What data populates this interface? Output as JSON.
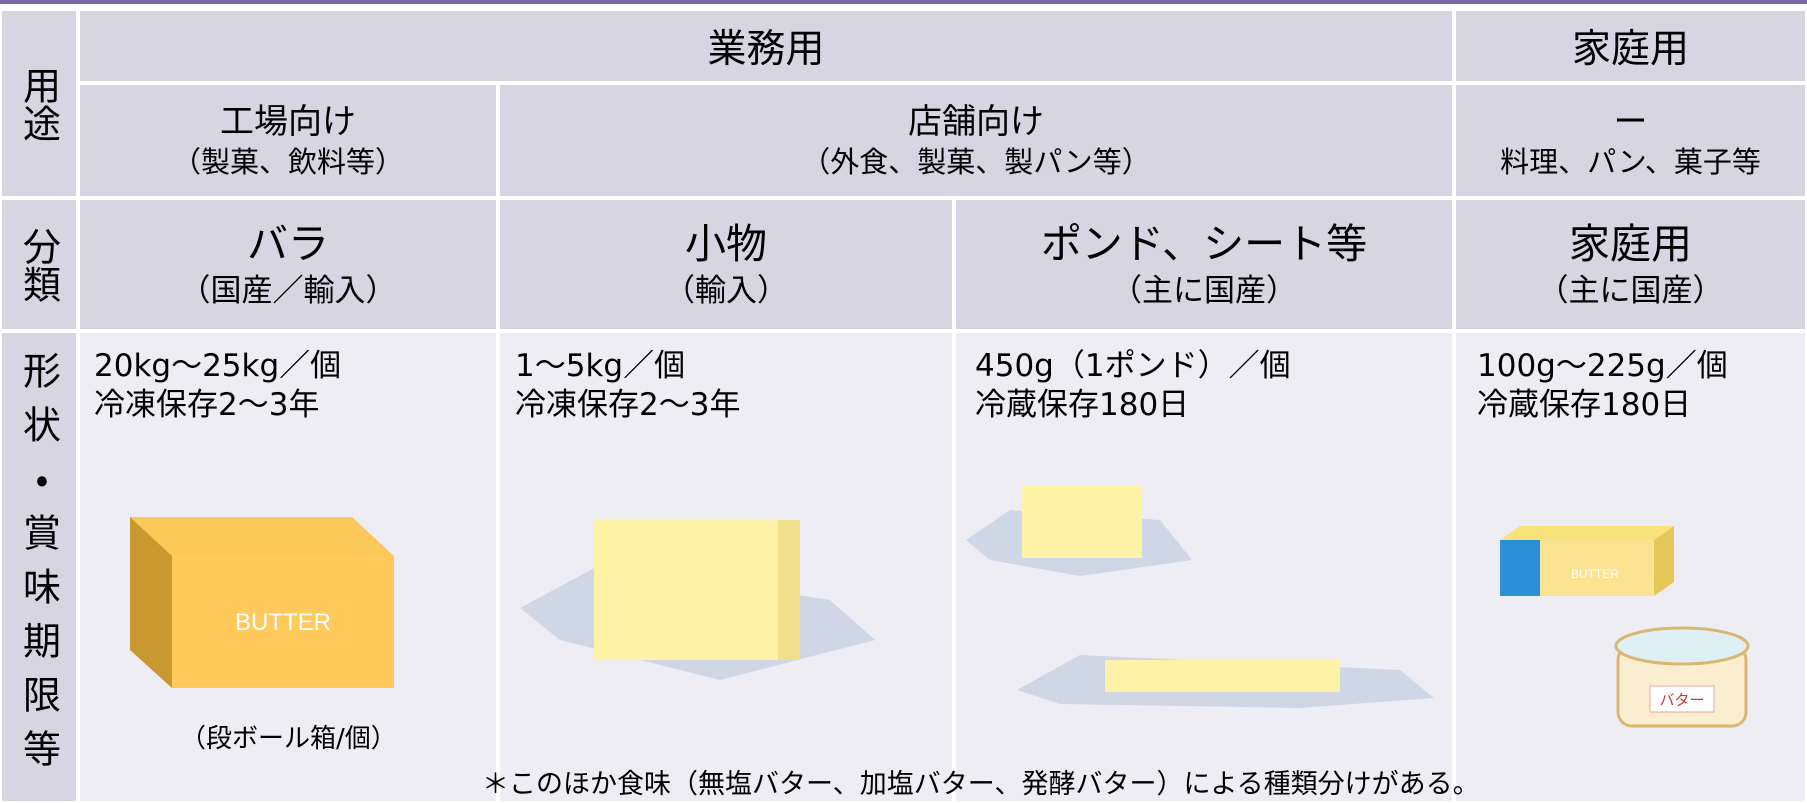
{
  "table": {
    "row_headers": [
      "用途",
      "分類",
      "形状・賞味期限等"
    ],
    "usage": {
      "business": "業務用",
      "household": "家庭用"
    },
    "targets": [
      {
        "title": "工場向け",
        "note": "（製菓、飲料等）"
      },
      {
        "title": "店舗向け",
        "note": "（外食、製菓、製パン等）"
      },
      {
        "title": "ー",
        "note": "料理、パン、菓子等"
      }
    ],
    "categories": [
      {
        "name": "バラ",
        "origin": "（国産／輸入）"
      },
      {
        "name": "小物",
        "origin": "（輸入）"
      },
      {
        "name": "ポンド、シート等",
        "origin": "（主に国産）"
      },
      {
        "name": "家庭用",
        "origin": "（主に国産）"
      }
    ],
    "specs": [
      {
        "size": "20kg～25kg／個",
        "storage": "冷凍保存2～3年"
      },
      {
        "size": "1～5kg／個",
        "storage": "冷凍保存2～3年"
      },
      {
        "size": "450g（1ポンド）／個",
        "storage": "冷蔵保存180日"
      },
      {
        "size": "100g～225g／個",
        "storage": "冷蔵保存180日"
      }
    ],
    "bulk_box_label": "BUTTER",
    "bulk_caption": "（段ボール箱/個）",
    "home_box_label": "BUTTER",
    "home_tub_label": "バター",
    "footnote": "＊このほか食味（無塩バター、加塩バター、発酵バター）による種類分けがある。"
  }
}
